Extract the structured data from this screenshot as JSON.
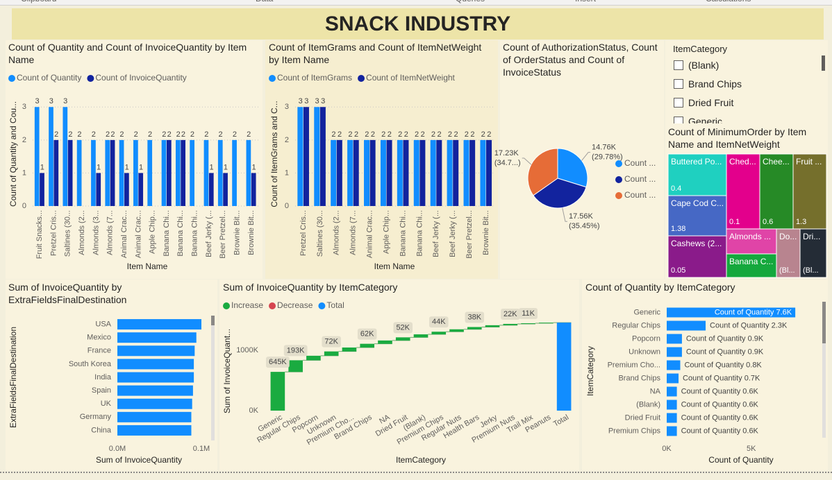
{
  "ribbon": [
    "Clipboard",
    "Data",
    "Queries",
    "Insert",
    "Calculations"
  ],
  "title": "SNACK INDUSTRY",
  "slicer": {
    "title": "ItemCategory",
    "items": [
      "(Blank)",
      "Brand Chips",
      "Dried Fruit",
      "Generic"
    ]
  },
  "chart_data": [
    {
      "type": "bar",
      "title": "Count of Quantity and Count of InvoiceQuantity by Item Name",
      "x_label": "Item Name",
      "y_label": "Count of Quantity and Cou...",
      "categories": [
        "Fruit Snacks...",
        "Pretzel Cris...",
        "Saltines (30...",
        "Almonds (2...",
        "Almonds (3...",
        "Almonds (7...",
        "Animal Crac...",
        "Animal Crac...",
        "Apple Chip...",
        "Banana Chi...",
        "Banana Chi...",
        "Banana Chi...",
        "Beef Jerky (...",
        "Beer Pretzel...",
        "Brownie Bit...",
        "Brownie Bit..."
      ],
      "series": [
        {
          "name": "Count of Quantity",
          "color": "#118dff",
          "values": [
            3,
            3,
            3,
            2,
            2,
            2,
            2,
            2,
            2,
            2,
            2,
            2,
            2,
            2,
            2,
            2
          ]
        },
        {
          "name": "Count of InvoiceQuantity",
          "color": "#12239e",
          "values": [
            1,
            2,
            2,
            null,
            1,
            2,
            1,
            1,
            null,
            2,
            2,
            null,
            1,
            1,
            null,
            1
          ]
        }
      ],
      "ylim": [
        0,
        3.3
      ],
      "yticks": [
        0,
        1,
        2,
        3
      ],
      "grid": true,
      "data_labels": true,
      "legend": "top-left"
    },
    {
      "type": "bar",
      "title": "Count of ItemGrams and Count of ItemNetWeight by Item Name",
      "x_label": "Item Name",
      "y_label": "Count of ItemGrams and C...",
      "categories": [
        "Pretzel Cris...",
        "Saltines (30...",
        "Almonds (2...",
        "Almonds (7...",
        "Animal Crac...",
        "Apple Chip...",
        "Banana Chi...",
        "Banana Chi...",
        "Beef Jerky (...",
        "Beef Jerky (...",
        "Beer Pretzel...",
        "Brownie Bit..."
      ],
      "series": [
        {
          "name": "Count of ItemGrams",
          "color": "#118dff",
          "values": [
            3,
            3,
            2,
            2,
            2,
            2,
            2,
            2,
            2,
            2,
            2,
            2
          ]
        },
        {
          "name": "Count of ItemNetWeight",
          "color": "#12239e",
          "values": [
            3,
            3,
            2,
            2,
            2,
            2,
            2,
            2,
            2,
            2,
            2,
            2
          ]
        }
      ],
      "ylim": [
        0,
        3.3
      ],
      "yticks": [
        0,
        1,
        2,
        3
      ],
      "grid": true,
      "data_labels": true,
      "legend": "top-left"
    },
    {
      "type": "pie",
      "title": "Count of AuthorizationStatus, Count of OrderStatus and Count of InvoiceStatus",
      "categories": [
        "Count ...",
        "Count ...",
        "Count ..."
      ],
      "values": [
        14760,
        17560,
        17230
      ],
      "value_labels": [
        "14.76K (29.78%)",
        "17.56K (35.45%)",
        "17.23K (34.7...)"
      ],
      "colors": [
        "#118dff",
        "#12239e",
        "#e66c37"
      ],
      "legend": "right"
    },
    {
      "type": "treemap",
      "title": "Count of MinimumOrder by Item Name and ItemNetWeight",
      "categories": [
        "Buttered Po...",
        "Cape Cod C...",
        "Cashews (2...",
        "Ched...",
        "Chee...",
        "Fruit ...",
        "Almonds ...",
        "Banana C...",
        "Do...",
        "Dri..."
      ],
      "sublabels": [
        "0.4",
        "1.38",
        "0.05",
        "0.1",
        "0.6",
        "1.3",
        null,
        null,
        "(Bl...",
        "(Bl..."
      ],
      "values": [
        2,
        2,
        2,
        2,
        2,
        2,
        1,
        1,
        1,
        1
      ],
      "colors": [
        "#1fd0c0",
        "#4668c5",
        "#8a1b8a",
        "#e3008c",
        "#268a26",
        "#756f2c",
        "#e044a7",
        "#15a83d",
        "#b8848f",
        "#242c36"
      ]
    },
    {
      "type": "bar",
      "horizontal": true,
      "title": "Sum of InvoiceQuantity by ExtraFieldsFinalDestination",
      "x_label": "Sum of InvoiceQuantity",
      "y_label": "ExtraFieldsFinalDestination",
      "categories": [
        "USA",
        "Mexico",
        "France",
        "South Korea",
        "India",
        "Spain",
        "UK",
        "Germany",
        "China"
      ],
      "values": [
        100000,
        94000,
        92000,
        91000,
        91000,
        90000,
        89000,
        88000,
        88000
      ],
      "color": "#118dff",
      "xlim": [
        0,
        100000
      ],
      "xticks": [
        {
          "value": 0,
          "label": "0.0M"
        },
        {
          "value": 100000,
          "label": "0.1M"
        }
      ]
    },
    {
      "type": "waterfall",
      "title": "Sum of InvoiceQuantity by ItemCategory",
      "x_label": "ItemCategory",
      "y_label": "Sum of InvoiceQuant...",
      "legend_items": [
        {
          "name": "Increase",
          "color": "#1aab40"
        },
        {
          "name": "Decrease",
          "color": "#d64550"
        },
        {
          "name": "Total",
          "color": "#118dff"
        }
      ],
      "categories": [
        "Generic",
        "Regular Chips",
        "Popcorn",
        "Unknown",
        "Premium Cho...",
        "Brand Chips",
        "NA",
        "Dried Fruit",
        "(Blank)",
        "Premium Chips",
        "Regular Nuts",
        "Health Bars",
        "Jerky",
        "Premium Nuts",
        "Trail Mix",
        "Peanuts"
      ],
      "values": [
        645000,
        193000,
        75000,
        72000,
        65000,
        62000,
        55000,
        52000,
        50000,
        44000,
        40000,
        38000,
        30000,
        22000,
        11000,
        10000
      ],
      "value_labels": [
        "645K",
        "193K",
        null,
        "72K",
        null,
        "62K",
        null,
        "52K",
        null,
        "44K",
        null,
        "38K",
        null,
        "22K",
        "11K",
        null
      ],
      "total_category": "Total",
      "ylim": [
        0,
        1500000
      ],
      "yticks": [
        {
          "value": 0,
          "label": "0K"
        },
        {
          "value": 1000000,
          "label": "1000K"
        }
      ]
    },
    {
      "type": "bar",
      "horizontal": true,
      "title": "Count of Quantity by ItemCategory",
      "x_label": "Count of Quantity",
      "y_label": "ItemCategory",
      "categories": [
        "Generic",
        "Regular Chips",
        "Popcorn",
        "Unknown",
        "Premium Cho...",
        "Brand Chips",
        "NA",
        "(Blank)",
        "Dried Fruit",
        "Premium Chips"
      ],
      "values": [
        7600,
        2300,
        900,
        900,
        800,
        700,
        600,
        600,
        600,
        600
      ],
      "value_labels": [
        "Count of Quantity 7.6K",
        "Count of Quantity 2.3K",
        "Count of Quantity 0.9K",
        "Count of Quantity 0.9K",
        "Count of Quantity 0.8K",
        "Count of Quantity 0.7K",
        "Count of Quantity 0.6K",
        "Count of Quantity 0.6K",
        "Count of Quantity 0.6K",
        "Count of Quantity 0.6K"
      ],
      "color": "#118dff",
      "xlim": [
        0,
        7800
      ],
      "xticks": [
        {
          "value": 0,
          "label": "0K"
        },
        {
          "value": 5000,
          "label": "5K"
        }
      ]
    }
  ]
}
